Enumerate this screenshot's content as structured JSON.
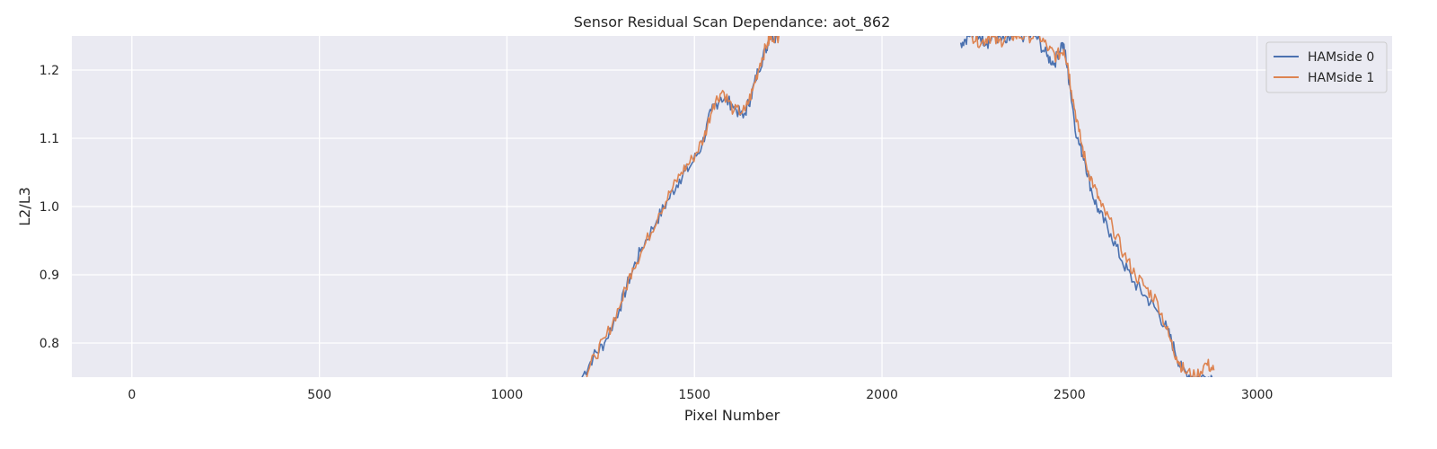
{
  "chart_data": {
    "type": "line",
    "title": "Sensor Residual Scan Dependance: aot_862",
    "xlabel": "Pixel Number",
    "ylabel": "L2/L3",
    "xlim": [
      -160,
      3360
    ],
    "ylim": [
      0.75,
      1.25
    ],
    "xticks": [
      0,
      500,
      1000,
      1500,
      2000,
      2500,
      3000
    ],
    "yticks": [
      0.8,
      0.9,
      1.0,
      1.1,
      1.2
    ],
    "grid": true,
    "legend_position": "top-right",
    "background_color": "#EAEAF2",
    "series": [
      {
        "name": "HAMside 0",
        "color": "#4C72B0",
        "x": [
          1200,
          1230,
          1260,
          1300,
          1330,
          1360,
          1400,
          1430,
          1460,
          1490,
          1520,
          1545,
          1570,
          1600,
          1630,
          1650,
          1670,
          1690,
          1700,
          1720
        ],
        "y": [
          0.75,
          0.78,
          0.8,
          0.85,
          0.9,
          0.94,
          0.98,
          1.01,
          1.04,
          1.06,
          1.09,
          1.14,
          1.16,
          1.15,
          1.13,
          1.16,
          1.2,
          1.23,
          1.25,
          1.25
        ]
      },
      {
        "name": "HAMside 0",
        "color": "#4C72B0",
        "x": [
          2210,
          2230,
          2260,
          2280,
          2300,
          2330,
          2350,
          2380,
          2410,
          2440,
          2460,
          2480,
          2490,
          2500,
          2520,
          2540,
          2560,
          2580,
          2610,
          2640,
          2670,
          2700,
          2730,
          2760,
          2780,
          2800,
          2830,
          2860,
          2880
        ],
        "y": [
          1.24,
          1.25,
          1.25,
          1.24,
          1.25,
          1.24,
          1.25,
          1.25,
          1.25,
          1.22,
          1.21,
          1.24,
          1.22,
          1.18,
          1.1,
          1.07,
          1.02,
          0.99,
          0.96,
          0.92,
          0.89,
          0.87,
          0.85,
          0.82,
          0.79,
          0.76,
          0.75,
          0.75,
          0.75
        ]
      },
      {
        "name": "HAMside 1",
        "color": "#DD8452",
        "x": [
          1205,
          1235,
          1265,
          1305,
          1335,
          1365,
          1405,
          1435,
          1465,
          1495,
          1525,
          1550,
          1575,
          1605,
          1635,
          1655,
          1675,
          1695,
          1705,
          1725
        ],
        "y": [
          0.75,
          0.78,
          0.81,
          0.86,
          0.91,
          0.94,
          0.99,
          1.02,
          1.05,
          1.07,
          1.1,
          1.15,
          1.17,
          1.14,
          1.14,
          1.17,
          1.21,
          1.24,
          1.25,
          1.25
        ]
      },
      {
        "name": "HAMside 1",
        "color": "#DD8452",
        "x": [
          2240,
          2265,
          2285,
          2310,
          2335,
          2355,
          2385,
          2420,
          2445,
          2465,
          2485,
          2495,
          2505,
          2525,
          2545,
          2565,
          2585,
          2615,
          2645,
          2675,
          2705,
          2735,
          2765,
          2785,
          2805,
          2835,
          2865,
          2885
        ],
        "y": [
          1.25,
          1.24,
          1.25,
          1.24,
          1.25,
          1.25,
          1.25,
          1.25,
          1.23,
          1.22,
          1.23,
          1.21,
          1.17,
          1.11,
          1.06,
          1.03,
          1.0,
          0.97,
          0.93,
          0.9,
          0.88,
          0.86,
          0.81,
          0.78,
          0.76,
          0.75,
          0.77,
          0.76
        ]
      }
    ]
  }
}
